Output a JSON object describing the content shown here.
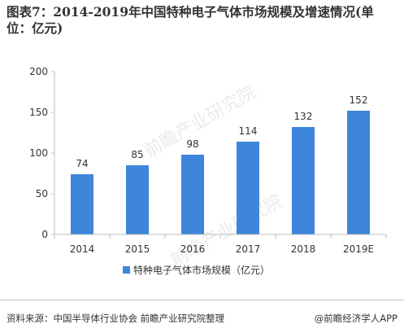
{
  "title": "图表7：2014-2019年中国特种电子气体市场规模及增速情况(单位：亿元)",
  "source": "资料来源：中国半导体行业协会 前瞻产业研究院整理",
  "brand": "@前瞻经济学人APP",
  "watermark": "前瞻产业研究院",
  "colors": {
    "bar": "#3d86db",
    "axis": "#bfbfbf",
    "text": "#333333"
  },
  "chart_data": {
    "type": "bar",
    "categories": [
      "2014",
      "2015",
      "2016",
      "2017",
      "2018",
      "2019E"
    ],
    "series": [
      {
        "name": "特种电子气体市场规模（亿元）",
        "values": [
          74,
          85,
          98,
          114,
          132,
          152
        ]
      }
    ],
    "ylim": [
      0,
      200
    ],
    "yticks": [
      "0",
      "50",
      "100",
      "150",
      "200"
    ],
    "data_labels": [
      "74",
      "85",
      "98",
      "114",
      "132",
      "152"
    ],
    "grid": false,
    "legend_position": "bottom-center"
  }
}
